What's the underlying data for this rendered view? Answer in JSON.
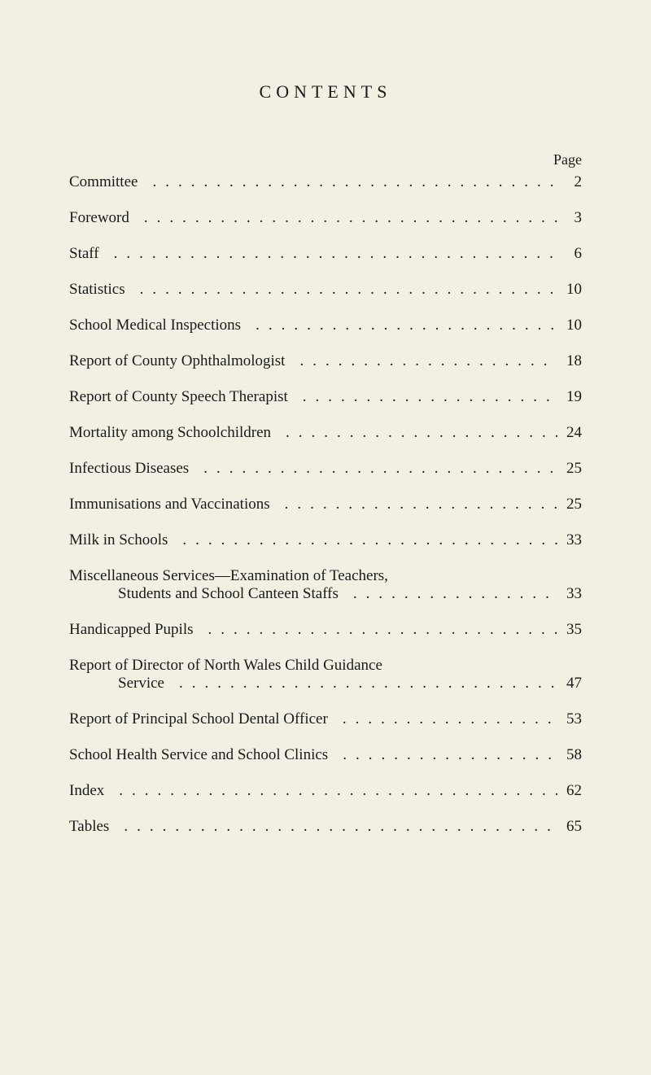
{
  "heading": "CONTENTS",
  "page_label": "Page",
  "entries": [
    {
      "title": "Committee",
      "page": "2",
      "indent": false
    },
    {
      "title": "Foreword",
      "page": "3",
      "indent": false
    },
    {
      "title": "Staff",
      "page": "6",
      "indent": false
    },
    {
      "title": "Statistics",
      "page": "10",
      "indent": false
    },
    {
      "title": "School Medical Inspections",
      "page": "10",
      "indent": false
    },
    {
      "title": "Report of County Ophthalmologist",
      "page": "18",
      "indent": false
    },
    {
      "title": "Report of County Speech Therapist",
      "page": "19",
      "indent": false
    },
    {
      "title": "Mortality among Schoolchildren",
      "page": "24",
      "indent": false
    },
    {
      "title": "Infectious Diseases",
      "page": "25",
      "indent": false
    },
    {
      "title": "Immunisations and Vaccinations",
      "page": "25",
      "indent": false
    },
    {
      "title": "Milk in Schools",
      "page": "33",
      "indent": false
    },
    {
      "title_line1": "Miscellaneous Services—Examination of Teachers,",
      "title_line2": "Students and School Canteen Staffs",
      "page": "33",
      "multiline": true
    },
    {
      "title": "Handicapped Pupils",
      "page": "35",
      "indent": false
    },
    {
      "title_line1": "Report of Director of North Wales Child Guidance",
      "title_line2": "Service",
      "page": "47",
      "multiline": true
    },
    {
      "title": "Report of Principal School Dental Officer",
      "page": "53",
      "indent": false
    },
    {
      "title": "School Health Service and School Clinics",
      "page": "58",
      "indent": false
    },
    {
      "title": "Index",
      "page": "62",
      "indent": false
    },
    {
      "title": "Tables",
      "page": "65",
      "indent": false
    }
  ],
  "colors": {
    "background": "#f2efe3",
    "text": "#1a1a1a"
  },
  "typography": {
    "heading_fontsize": 22,
    "body_fontsize": 19,
    "heading_letterspacing": 6
  }
}
